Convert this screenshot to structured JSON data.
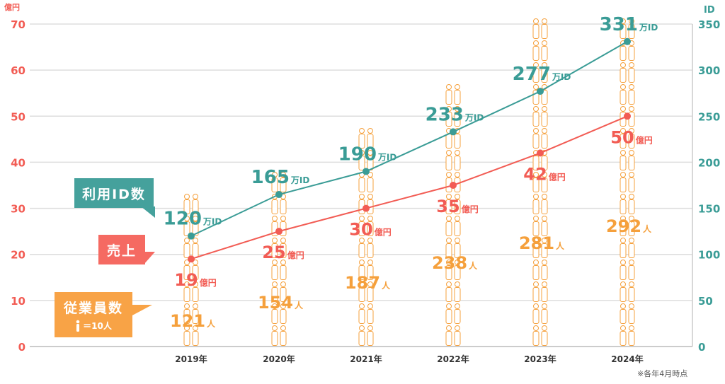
{
  "chart_data": {
    "type": "bar+line",
    "categories": [
      "2019年",
      "2020年",
      "2021年",
      "2022年",
      "2023年",
      "2024年"
    ],
    "left_axis": {
      "unit": "億円",
      "range": [
        0,
        70
      ],
      "ticks": [
        0,
        10,
        20,
        30,
        40,
        50,
        60,
        70
      ]
    },
    "right_axis": {
      "unit": "ID",
      "range": [
        0,
        350
      ],
      "ticks": [
        0,
        50,
        100,
        150,
        200,
        250,
        300,
        350
      ]
    },
    "series": [
      {
        "name": "利用ID数",
        "axis": "right",
        "type": "line",
        "unit": "万ID",
        "values": [
          120,
          165,
          190,
          233,
          277,
          331
        ]
      },
      {
        "name": "売上",
        "axis": "left",
        "type": "line",
        "unit": "億円",
        "values": [
          19,
          25,
          30,
          35,
          42,
          50
        ]
      },
      {
        "name": "従業員数",
        "type": "pictogram",
        "unit": "人",
        "values": [
          121,
          154,
          187,
          238,
          281,
          292
        ]
      }
    ],
    "grid": true
  },
  "legend": {
    "ids": "利用ID数",
    "sales": "売上",
    "employees": "従業員数",
    "icon_note": "＝10人"
  },
  "note": "※各年4月時点",
  "colors": {
    "ids": "#3a9c96",
    "sales": "#f25c54",
    "employees": "#f5a03c",
    "grid": "#dddddd"
  }
}
